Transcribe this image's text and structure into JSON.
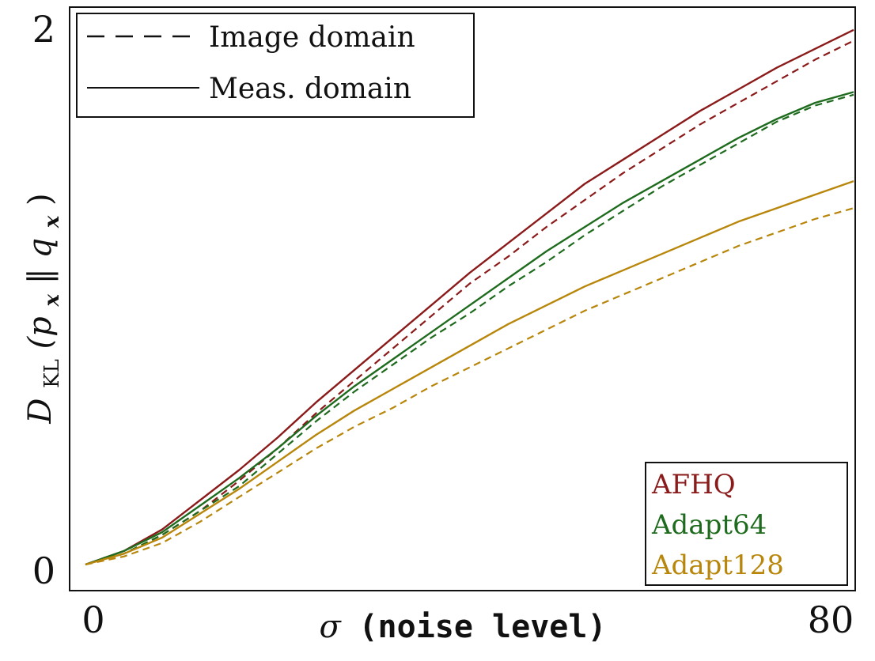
{
  "chart_data": {
    "type": "line",
    "xlabel": {
      "symbol": "σ",
      "text": "(noise level)"
    },
    "ylabel": {
      "parts": [
        "D",
        "KL",
        "(p",
        "x",
        " ‖ q",
        "x",
        ")"
      ]
    },
    "xlim": [
      0,
      80
    ],
    "ylim": [
      0,
      2
    ],
    "x_ticks": [
      "0",
      "80"
    ],
    "y_ticks": [
      "0",
      "2"
    ],
    "grid": false,
    "style_legend": {
      "placement": "top-left",
      "entries": [
        {
          "label": "Image domain",
          "dash": "dashed"
        },
        {
          "label": "Meas. domain",
          "dash": "solid"
        }
      ]
    },
    "dataset_legend": {
      "placement": "bottom-right",
      "entries": [
        {
          "label": "AFHQ",
          "color": "#8b1a1a"
        },
        {
          "label": "Adapt64",
          "color": "#1e6b1e"
        },
        {
          "label": "Adapt128",
          "color": "#b8860b"
        }
      ]
    },
    "x": [
      0,
      4,
      8,
      12,
      16,
      20,
      24,
      28,
      32,
      36,
      40,
      44,
      48,
      52,
      56,
      60,
      64,
      68,
      72,
      76,
      80
    ],
    "series": [
      {
        "dataset": "AFHQ",
        "style": "solid",
        "color": "#8b1a1a",
        "values": [
          0.0,
          0.05,
          0.13,
          0.24,
          0.35,
          0.47,
          0.6,
          0.72,
          0.84,
          0.96,
          1.08,
          1.19,
          1.3,
          1.41,
          1.5,
          1.59,
          1.68,
          1.76,
          1.84,
          1.91,
          1.98
        ]
      },
      {
        "dataset": "AFHQ",
        "style": "dashed",
        "color": "#8b1a1a",
        "values": [
          0.0,
          0.04,
          0.11,
          0.2,
          0.31,
          0.43,
          0.56,
          0.68,
          0.8,
          0.92,
          1.04,
          1.14,
          1.25,
          1.35,
          1.45,
          1.54,
          1.63,
          1.71,
          1.79,
          1.87,
          1.94
        ]
      },
      {
        "dataset": "Adapt64",
        "style": "solid",
        "color": "#1e6b1e",
        "values": [
          0.0,
          0.05,
          0.12,
          0.22,
          0.32,
          0.43,
          0.55,
          0.66,
          0.76,
          0.86,
          0.96,
          1.06,
          1.16,
          1.25,
          1.34,
          1.42,
          1.5,
          1.58,
          1.65,
          1.71,
          1.75
        ]
      },
      {
        "dataset": "Adapt64",
        "style": "dashed",
        "color": "#1e6b1e",
        "values": [
          0.0,
          0.04,
          0.11,
          0.2,
          0.29,
          0.41,
          0.53,
          0.64,
          0.74,
          0.84,
          0.93,
          1.03,
          1.12,
          1.22,
          1.31,
          1.4,
          1.48,
          1.56,
          1.64,
          1.7,
          1.74
        ]
      },
      {
        "dataset": "Adapt128",
        "style": "solid",
        "color": "#b8860b",
        "values": [
          0.0,
          0.04,
          0.1,
          0.19,
          0.28,
          0.38,
          0.48,
          0.57,
          0.65,
          0.73,
          0.81,
          0.89,
          0.96,
          1.03,
          1.09,
          1.15,
          1.21,
          1.27,
          1.32,
          1.37,
          1.42
        ]
      },
      {
        "dataset": "Adapt128",
        "style": "dashed",
        "color": "#b8860b",
        "values": [
          0.0,
          0.03,
          0.08,
          0.16,
          0.25,
          0.34,
          0.43,
          0.51,
          0.58,
          0.66,
          0.73,
          0.8,
          0.87,
          0.94,
          1.0,
          1.06,
          1.12,
          1.18,
          1.23,
          1.28,
          1.32
        ]
      }
    ]
  }
}
